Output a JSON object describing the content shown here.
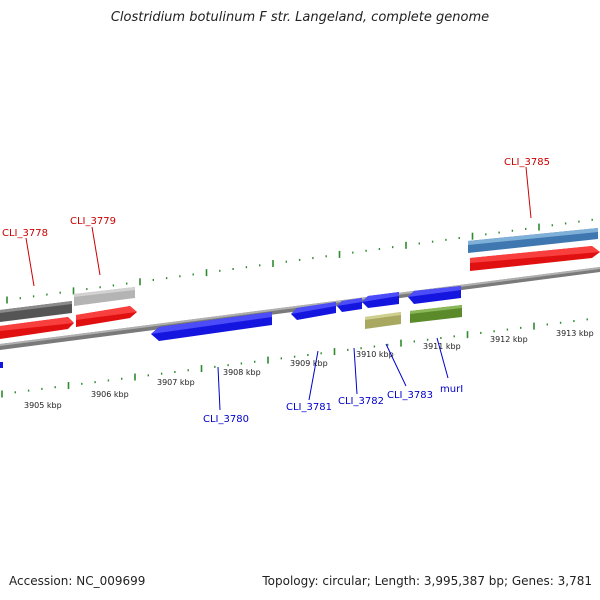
{
  "title": "Clostridium botulinum F str. Langeland, complete genome",
  "footer": {
    "accession": "Accession: NC_009699",
    "stats": "Topology: circular; Length: 3,995,387 bp; Genes: 3,781"
  },
  "colors": {
    "backbone": "#888888",
    "tick": "#2e8b2e",
    "label_forward": "#cc0000",
    "label_reverse": "#0000cc",
    "blue_gene": "#1a1aee",
    "red_gene": "#ee1111"
  },
  "tick_labels": [
    "3905 kbp",
    "3906 kbp",
    "3907 kbp",
    "3908 kbp",
    "3909 kbp",
    "3910 kbp",
    "3911 kbp",
    "3912 kbp",
    "3913 kbp"
  ],
  "gene_labels": [
    {
      "text": "CLI_3778",
      "strand": "forward"
    },
    {
      "text": "CLI_3779",
      "strand": "forward"
    },
    {
      "text": "CLI_3785",
      "strand": "forward"
    },
    {
      "text": "CLI_3780",
      "strand": "reverse"
    },
    {
      "text": "CLI_3781",
      "strand": "reverse"
    },
    {
      "text": "CLI_3782",
      "strand": "reverse"
    },
    {
      "text": "CLI_3783",
      "strand": "reverse"
    },
    {
      "text": "murI",
      "strand": "reverse"
    }
  ]
}
